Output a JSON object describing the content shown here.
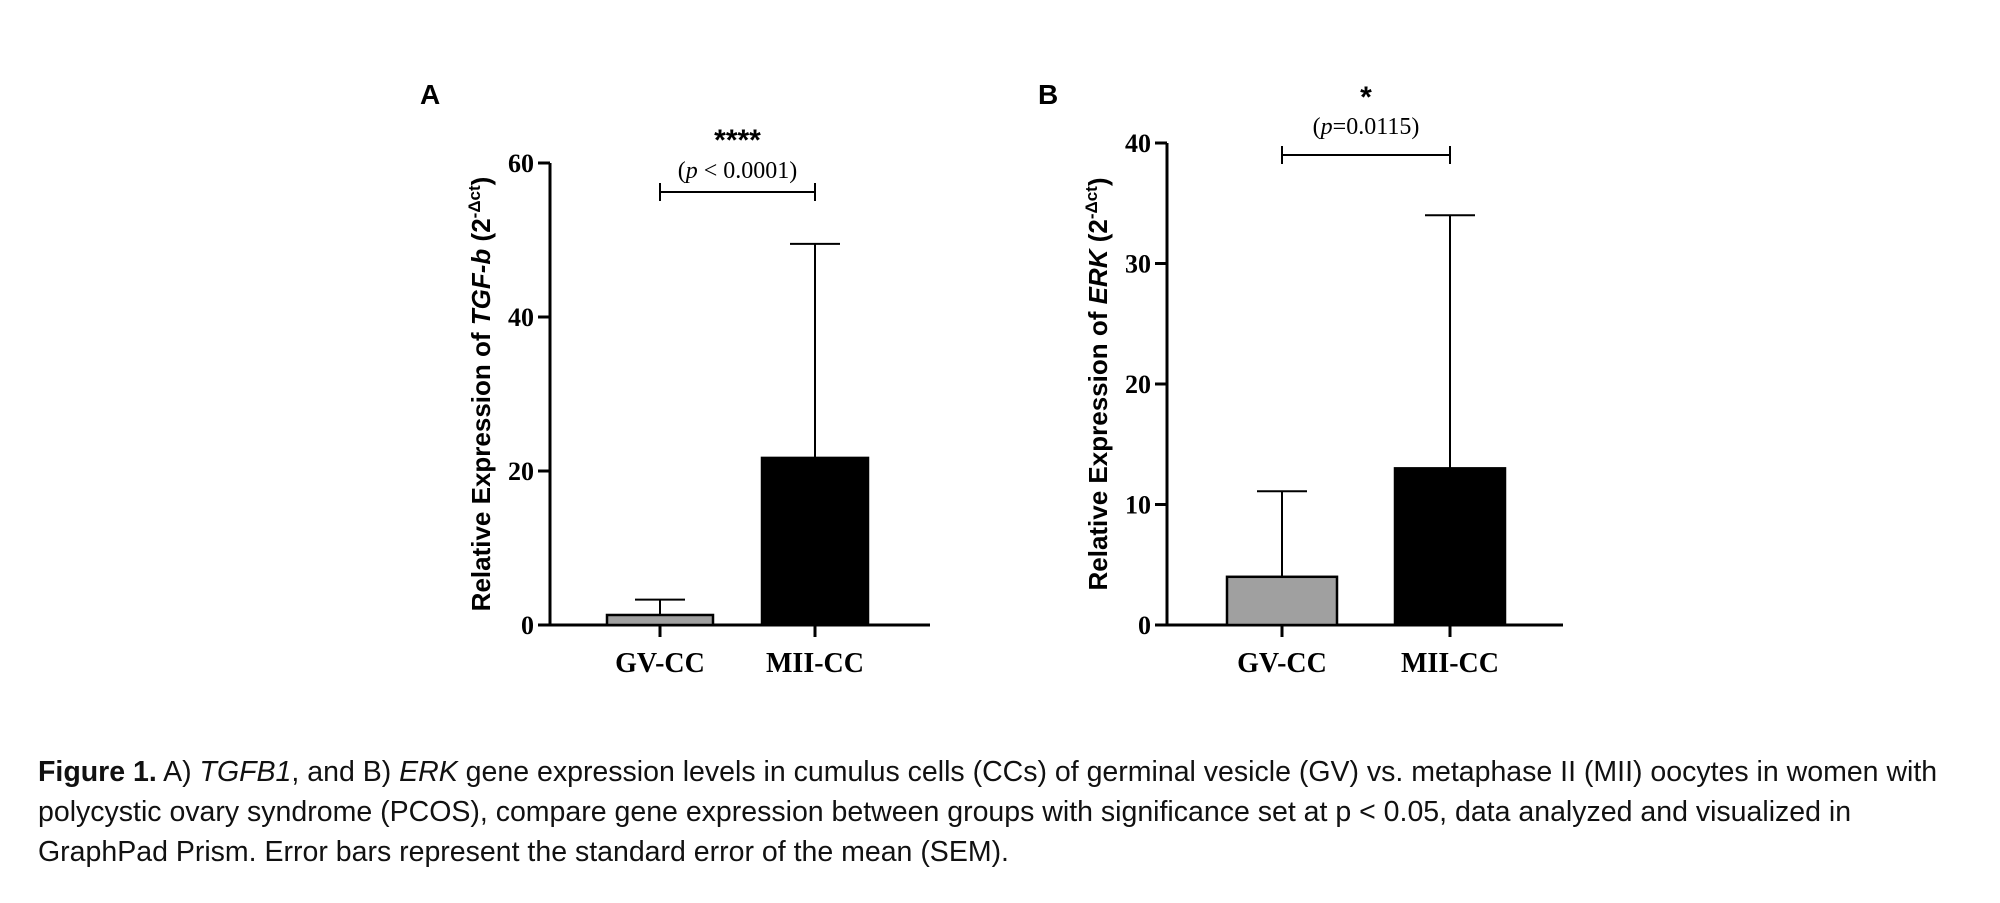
{
  "chart_data": [
    {
      "type": "bar",
      "panel": "A",
      "ylabel_prefix": "Relative Expression of ",
      "ylabel_gene": "TGF-b",
      "ylabel_suffix": " (2",
      "ylabel_sup": "-Δct",
      "ylabel_close": ")",
      "categories": [
        "GV-CC",
        "MII-CC"
      ],
      "values": [
        1.3,
        21.7
      ],
      "errors": [
        2.0,
        27.8
      ],
      "colors": [
        "#a0a0a0",
        "#000000"
      ],
      "ylim": [
        0,
        60
      ],
      "yticks": [
        0,
        20,
        40,
        60
      ],
      "significance": {
        "stars": "****",
        "p_italic": "p",
        "p_rest": " < 0.0001)",
        "p_open": "("
      }
    },
    {
      "type": "bar",
      "panel": "B",
      "ylabel_prefix": "Relative Expression of ",
      "ylabel_gene": "ERK",
      "ylabel_suffix": " (2",
      "ylabel_sup": "-Δct",
      "ylabel_close": ")",
      "categories": [
        "GV-CC",
        "MII-CC"
      ],
      "values": [
        4.0,
        13.0
      ],
      "errors": [
        7.1,
        21.0
      ],
      "colors": [
        "#a0a0a0",
        "#000000"
      ],
      "ylim": [
        0,
        40
      ],
      "yticks": [
        0,
        10,
        20,
        30,
        40
      ],
      "significance": {
        "stars": "*",
        "p_italic": "p",
        "p_rest": "=0.0115)",
        "p_open": "("
      }
    }
  ],
  "caption": {
    "label": "Figure 1.",
    "part1": " A) ",
    "gene1": "TGFB1",
    "part2": ", and B) ",
    "gene2": "ERK",
    "part3": " gene expression levels in cumulus cells (CCs) of germinal vesicle (GV) vs. metaphase II (MII) oocytes in women with polycystic ovary syndrome (PCOS), compare gene expression between groups with significance set at p < 0.05, data analyzed and visualized in GraphPad Prism. Error bars represent the standard error of the mean (SEM)."
  }
}
